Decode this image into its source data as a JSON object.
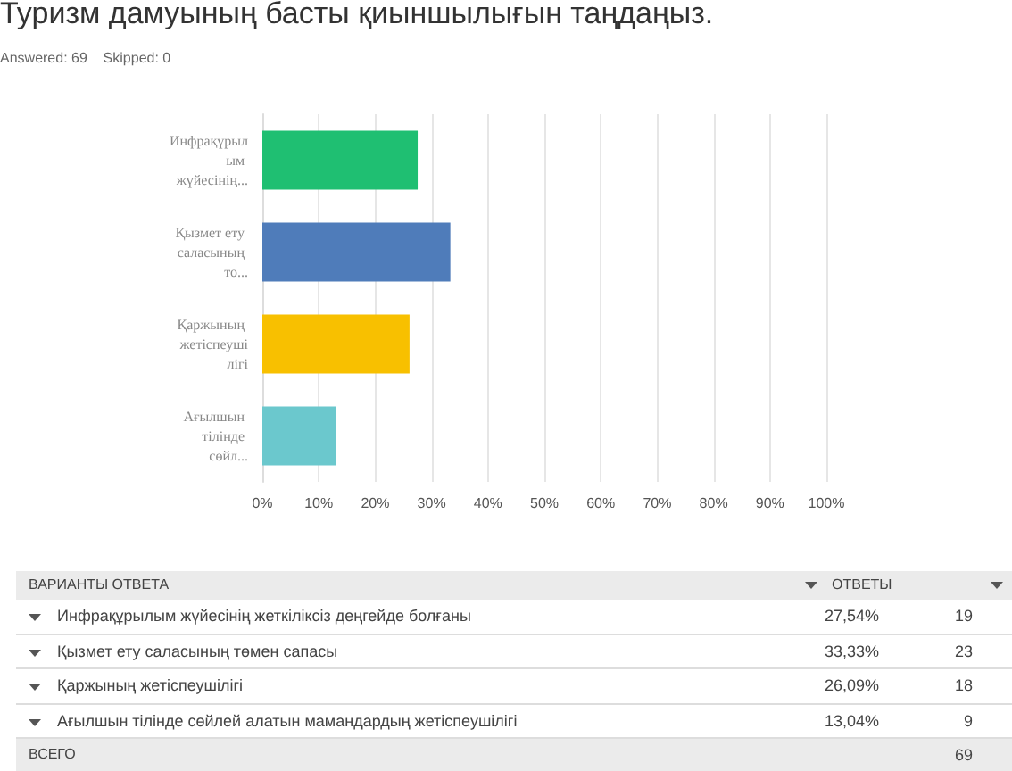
{
  "chart_data": {
    "type": "bar",
    "orientation": "horizontal",
    "title": "Туризм дамуының басты қиыншылығын таңдаңыз.",
    "subtitle": "Answered: 69    Skipped: 0",
    "categories": [
      "Инфрақұрылым жүйесінің...",
      "Қызмет ету саласының то...",
      "Қаржының жетіспеушілігі",
      "Ағылшын тілінде сөйл..."
    ],
    "values": [
      27.54,
      33.33,
      26.09,
      13.04
    ],
    "colors": [
      "#1fbf72",
      "#4f7cba",
      "#f8c000",
      "#6bc8cd"
    ],
    "xlim": [
      0,
      100
    ],
    "xticks": [
      {
        "value": 0,
        "label": "0%"
      },
      {
        "value": 10,
        "label": "10%"
      },
      {
        "value": 20,
        "label": "20%"
      },
      {
        "value": 30,
        "label": "30%"
      },
      {
        "value": 40,
        "label": "40%"
      },
      {
        "value": 50,
        "label": "50%"
      },
      {
        "value": 60,
        "label": "60%"
      },
      {
        "value": 70,
        "label": "70%"
      },
      {
        "value": 80,
        "label": "80%"
      },
      {
        "value": 90,
        "label": "90%"
      },
      {
        "value": 100,
        "label": "100%"
      }
    ],
    "grid": "x",
    "annotations": [
      "ВАРИАНТЫ ОТВЕТА",
      "ОТВЕТЫ",
      "Инфрақұрылым жүйесінің жеткіліксіз деңгейде болғаны",
      "Қызмет ету саласының төмен сапасы",
      "Қаржының жетіспеушілігі",
      "Ағылшын тілінде сөйлей алатын мамандардың жетіспеушілігі",
      "27,54%",
      "33,33%",
      "26,09%",
      "13,04%",
      "19",
      "23",
      "18",
      "9",
      "ВСЕГО",
      "69"
    ]
  }
}
